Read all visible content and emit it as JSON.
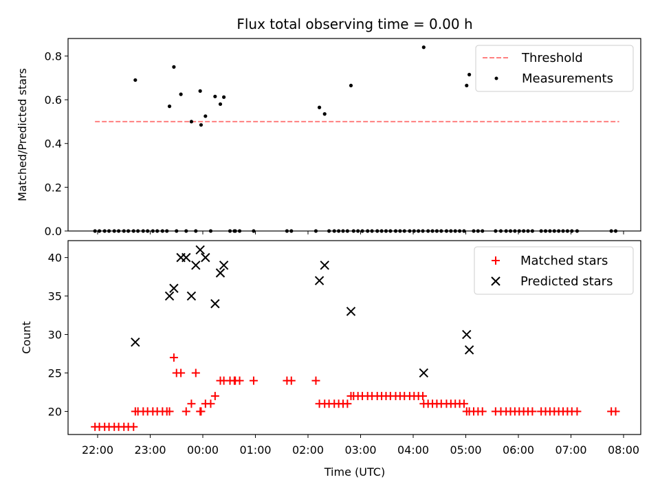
{
  "chart_data": [
    {
      "type": "scatter",
      "title": "Flux total observing time = 0.00 h",
      "xlabel": "",
      "ylabel": "Matched/Predicted stars",
      "ylim": [
        0,
        0.88
      ],
      "yticks": [
        0.0,
        0.2,
        0.4,
        0.6,
        0.8
      ],
      "ytick_labels": [
        "0.0",
        "0.2",
        "0.4",
        "0.6",
        "0.8"
      ],
      "legend": {
        "placement": "top-right",
        "entries": [
          {
            "label": "Threshold",
            "marker": "dashed-line",
            "color": "#ff7f7f"
          },
          {
            "label": "Measurements",
            "marker": "dot",
            "color": "#000000"
          }
        ]
      },
      "threshold": {
        "y": 0.5,
        "x_start": "21:57",
        "x_end": "07:55",
        "color": "#ff7f7f"
      },
      "series": [
        {
          "name": "Measurements",
          "color": "#000000",
          "x": [
            "21:57",
            "22:02",
            "22:08",
            "22:13",
            "22:19",
            "22:24",
            "22:30",
            "22:35",
            "22:41",
            "22:43",
            "22:46",
            "22:52",
            "22:57",
            "23:03",
            "23:08",
            "23:14",
            "23:19",
            "23:22",
            "23:27",
            "23:30",
            "23:35",
            "23:41",
            "23:47",
            "23:52",
            "23:57",
            "23:58",
            "00:03",
            "00:09",
            "00:14",
            "00:20",
            "00:24",
            "00:31",
            "00:36",
            "00:37",
            "00:42",
            "00:58",
            "01:36",
            "01:41",
            "02:09",
            "02:13",
            "02:19",
            "02:24",
            "02:30",
            "02:35",
            "02:40",
            "02:45",
            "02:49",
            "02:52",
            "02:57",
            "03:02",
            "03:08",
            "03:13",
            "03:19",
            "03:24",
            "03:29",
            "03:34",
            "03:40",
            "03:45",
            "03:50",
            "03:56",
            "04:01",
            "04:06",
            "04:11",
            "04:12",
            "04:17",
            "04:22",
            "04:27",
            "04:32",
            "04:38",
            "04:43",
            "04:48",
            "04:53",
            "04:58",
            "05:01",
            "05:04",
            "05:09",
            "05:14",
            "05:19",
            "05:34",
            "05:40",
            "05:46",
            "05:51",
            "05:56",
            "06:01",
            "06:06",
            "06:11",
            "06:16",
            "06:26",
            "06:31",
            "06:36",
            "06:41",
            "06:46",
            "06:51",
            "06:56",
            "07:01",
            "07:07",
            "07:46",
            "07:51"
          ],
          "y": [
            0,
            0,
            0,
            0,
            0,
            0,
            0,
            0,
            0,
            0.69,
            0,
            0,
            0,
            0,
            0,
            0,
            0,
            0.57,
            0.75,
            0,
            0.625,
            0,
            0.5,
            0,
            0.64,
            0.485,
            0.525,
            0,
            0.615,
            0.58,
            0.612,
            0,
            0,
            0,
            0,
            0,
            0,
            0,
            0,
            0.565,
            0.535,
            0,
            0,
            0,
            0,
            0,
            0.665,
            0,
            0,
            0,
            0,
            0,
            0,
            0,
            0,
            0,
            0,
            0,
            0,
            0,
            0,
            0,
            0,
            0.84,
            0,
            0,
            0,
            0,
            0,
            0,
            0,
            0,
            0,
            0.665,
            0.715,
            0,
            0,
            0,
            0,
            0,
            0,
            0,
            0,
            0,
            0,
            0,
            0,
            0,
            0,
            0,
            0,
            0,
            0,
            0,
            0,
            0,
            0,
            0
          ]
        }
      ]
    },
    {
      "type": "scatter",
      "title": "",
      "xlabel": "Time (UTC)",
      "ylabel": "Count",
      "ylim": [
        17,
        42.2
      ],
      "yticks": [
        20,
        25,
        30,
        35,
        40
      ],
      "ytick_labels": [
        "20",
        "25",
        "30",
        "35",
        "40"
      ],
      "xticks": [
        "22:00",
        "23:00",
        "00:00",
        "01:00",
        "02:00",
        "03:00",
        "04:00",
        "05:00",
        "06:00",
        "07:00",
        "08:00"
      ],
      "legend": {
        "placement": "top-right",
        "entries": [
          {
            "label": "Matched stars",
            "marker": "plus",
            "color": "#ff0000"
          },
          {
            "label": "Predicted stars",
            "marker": "x",
            "color": "#000000"
          }
        ]
      },
      "series": [
        {
          "name": "Matched stars",
          "marker": "plus",
          "color": "#ff0000",
          "x": [
            "21:57",
            "22:02",
            "22:08",
            "22:13",
            "22:19",
            "22:24",
            "22:30",
            "22:35",
            "22:41",
            "22:43",
            "22:46",
            "22:52",
            "22:57",
            "23:03",
            "23:08",
            "23:14",
            "23:19",
            "23:22",
            "23:27",
            "23:30",
            "23:35",
            "23:41",
            "23:47",
            "23:52",
            "23:57",
            "23:58",
            "00:03",
            "00:09",
            "00:14",
            "00:20",
            "00:24",
            "00:31",
            "00:36",
            "00:37",
            "00:42",
            "00:58",
            "01:36",
            "01:41",
            "02:09",
            "02:13",
            "02:19",
            "02:24",
            "02:30",
            "02:35",
            "02:40",
            "02:45",
            "02:49",
            "02:52",
            "02:57",
            "03:02",
            "03:08",
            "03:13",
            "03:19",
            "03:24",
            "03:29",
            "03:34",
            "03:40",
            "03:45",
            "03:50",
            "03:56",
            "04:01",
            "04:06",
            "04:11",
            "04:12",
            "04:17",
            "04:22",
            "04:27",
            "04:32",
            "04:38",
            "04:43",
            "04:48",
            "04:53",
            "04:58",
            "05:01",
            "05:04",
            "05:09",
            "05:14",
            "05:19",
            "05:34",
            "05:40",
            "05:46",
            "05:51",
            "05:56",
            "06:01",
            "06:06",
            "06:11",
            "06:16",
            "06:26",
            "06:31",
            "06:36",
            "06:41",
            "06:46",
            "06:51",
            "06:56",
            "07:01",
            "07:07",
            "07:46",
            "07:51"
          ],
          "y": [
            18,
            18,
            18,
            18,
            18,
            18,
            18,
            18,
            18,
            20,
            20,
            20,
            20,
            20,
            20,
            20,
            20,
            20,
            27,
            25,
            25,
            20,
            21,
            25,
            20,
            20,
            21,
            21,
            22,
            24,
            24,
            24,
            24,
            24,
            24,
            24,
            24,
            24,
            24,
            21,
            21,
            21,
            21,
            21,
            21,
            21,
            22,
            22,
            22,
            22,
            22,
            22,
            22,
            22,
            22,
            22,
            22,
            22,
            22,
            22,
            22,
            22,
            22,
            21,
            21,
            21,
            21,
            21,
            21,
            21,
            21,
            21,
            21,
            20,
            20,
            20,
            20,
            20,
            20,
            20,
            20,
            20,
            20,
            20,
            20,
            20,
            20,
            20,
            20,
            20,
            20,
            20,
            20,
            20,
            20,
            20,
            20,
            20
          ]
        },
        {
          "name": "Predicted stars",
          "marker": "x",
          "color": "#000000",
          "x": [
            "22:43",
            "23:22",
            "23:27",
            "23:35",
            "23:41",
            "23:47",
            "23:52",
            "23:57",
            "24:03",
            "24:14",
            "24:20",
            "24:24",
            "26:13",
            "26:19",
            "26:49",
            "28:12",
            "29:01",
            "29:04"
          ],
          "y": [
            29,
            35,
            36,
            40,
            40,
            35,
            39,
            41,
            40,
            34,
            38,
            39,
            37,
            39,
            33,
            25,
            30,
            28
          ]
        }
      ]
    }
  ]
}
